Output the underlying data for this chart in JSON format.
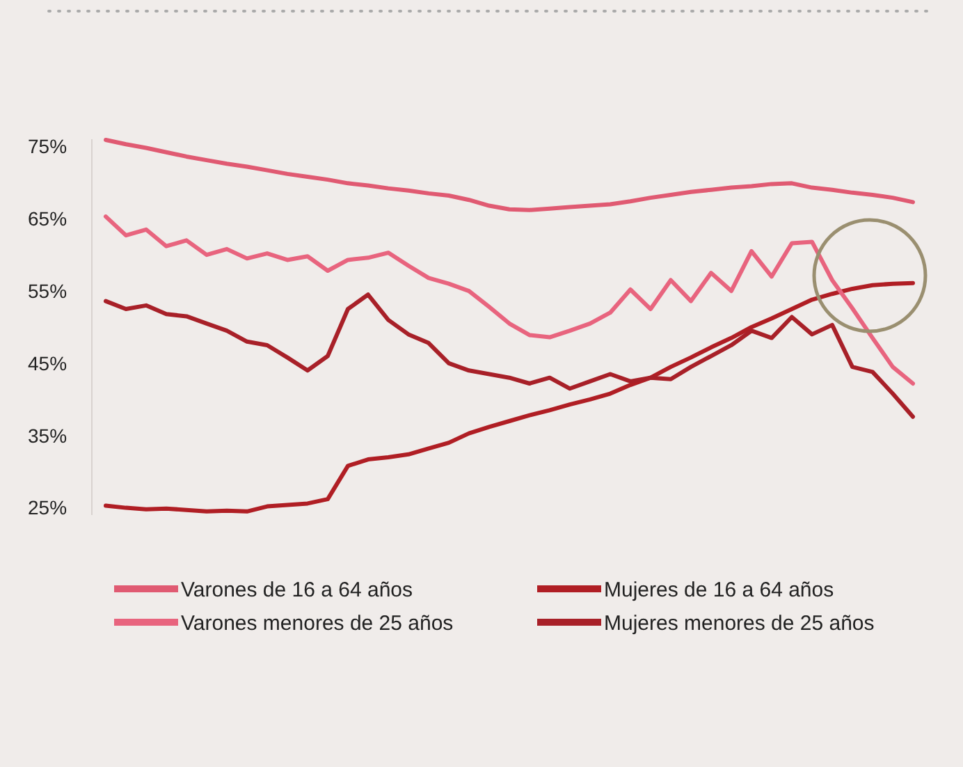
{
  "chart_data": {
    "type": "line",
    "categories": [
      null,
      null,
      null,
      null,
      null,
      null,
      null,
      null,
      null,
      null,
      null,
      null,
      null,
      null,
      null,
      null,
      null,
      null,
      null,
      null,
      null,
      null,
      null,
      null,
      null,
      null,
      null,
      null,
      null,
      null,
      null,
      null,
      null,
      null,
      null,
      null,
      null,
      null,
      null,
      null,
      null
    ],
    "ylim": [
      24,
      76
    ],
    "yticks": [
      {
        "value": 25,
        "label": "25%"
      },
      {
        "value": 35,
        "label": "35%"
      },
      {
        "value": 45,
        "label": "45%"
      },
      {
        "value": 55,
        "label": "55%"
      },
      {
        "value": 65,
        "label": "65%"
      },
      {
        "value": 75,
        "label": "75%"
      }
    ],
    "grid": false,
    "legend": "bottom",
    "marker": "none",
    "series": [
      {
        "name": "Varones de 16 a 64 años",
        "color": "#e05a72",
        "values": [
          75.9,
          75.3,
          74.8,
          74.2,
          73.6,
          73.1,
          72.6,
          72.2,
          71.7,
          71.2,
          70.8,
          70.4,
          69.9,
          69.6,
          69.2,
          68.9,
          68.5,
          68.2,
          67.6,
          66.8,
          66.3,
          66.2,
          66.4,
          66.6,
          66.8,
          67.0,
          67.4,
          67.9,
          68.3,
          68.7,
          69.0,
          69.3,
          69.5,
          69.8,
          69.9,
          69.3,
          69.0,
          68.6,
          68.3,
          67.9,
          67.3
        ]
      },
      {
        "name": "Mujeres de 16 a 64 años",
        "color": "#b01e24",
        "values": [
          25.3,
          25.0,
          24.8,
          24.9,
          24.7,
          24.5,
          24.6,
          24.5,
          25.2,
          25.4,
          25.6,
          26.2,
          30.8,
          31.7,
          32.0,
          32.4,
          33.2,
          34.0,
          35.3,
          36.2,
          37.0,
          37.8,
          38.5,
          39.3,
          40.0,
          40.8,
          42.0,
          43.0,
          44.5,
          45.8,
          47.2,
          48.5,
          50.0,
          51.2,
          52.5,
          53.8,
          54.6,
          55.3,
          55.8,
          56.0,
          56.1
        ]
      },
      {
        "name": "Varones menores de 25 años",
        "color": "#e8647e",
        "values": [
          65.3,
          62.7,
          63.5,
          61.2,
          62.0,
          60.0,
          60.8,
          59.5,
          60.2,
          59.3,
          59.8,
          57.8,
          59.3,
          59.6,
          60.3,
          58.5,
          56.8,
          56.0,
          55.0,
          52.8,
          50.5,
          48.9,
          48.6,
          49.5,
          50.5,
          52.0,
          55.2,
          52.5,
          56.5,
          53.6,
          57.5,
          55.0,
          60.5,
          57.0,
          61.6,
          61.8,
          56.5,
          52.6,
          48.5,
          44.5,
          42.2
        ]
      },
      {
        "name": "Mujeres menores de 25 años",
        "color": "#a82028",
        "values": [
          53.6,
          52.5,
          53.0,
          51.8,
          51.5,
          50.5,
          49.5,
          48.0,
          47.5,
          45.8,
          44.0,
          46.0,
          52.5,
          54.5,
          51.0,
          49.0,
          47.8,
          45.0,
          44.0,
          43.5,
          43.0,
          42.2,
          43.0,
          41.5,
          42.5,
          43.5,
          42.5,
          43.0,
          42.8,
          44.5,
          46.0,
          47.5,
          49.5,
          48.5,
          51.4,
          49.0,
          50.3,
          44.5,
          43.8,
          40.8,
          37.6
        ]
      }
    ]
  }
}
